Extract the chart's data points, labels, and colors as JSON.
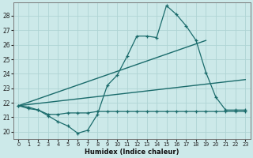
{
  "xlabel": "Humidex (Indice chaleur)",
  "xlim": [
    -0.5,
    23.5
  ],
  "ylim": [
    19.5,
    28.9
  ],
  "yticks": [
    20,
    21,
    22,
    23,
    24,
    25,
    26,
    27,
    28
  ],
  "xticks": [
    0,
    1,
    2,
    3,
    4,
    5,
    6,
    7,
    8,
    9,
    10,
    11,
    12,
    13,
    14,
    15,
    16,
    17,
    18,
    19,
    20,
    21,
    22,
    23
  ],
  "bg_color": "#cce9e9",
  "line_color": "#1a6b6b",
  "grid_color": "#afd4d4",
  "line1_x": [
    0,
    1,
    2,
    3,
    4,
    5,
    6,
    7,
    8,
    9,
    10,
    11,
    12,
    13,
    14,
    15,
    16,
    17,
    18,
    19,
    20,
    21,
    22,
    23
  ],
  "line1_y": [
    21.8,
    21.7,
    21.5,
    21.1,
    20.7,
    20.4,
    19.9,
    20.1,
    21.2,
    23.2,
    23.9,
    25.2,
    26.6,
    26.6,
    26.5,
    28.7,
    28.1,
    27.3,
    26.3,
    24.1,
    22.4,
    21.5,
    21.5,
    21.5
  ],
  "line2_x": [
    0,
    1,
    2,
    3,
    4,
    5,
    6,
    7,
    8,
    9,
    10,
    11,
    12,
    13,
    14,
    15,
    16,
    17,
    18,
    19,
    20,
    21,
    22,
    23
  ],
  "line2_y": [
    21.8,
    21.6,
    21.5,
    21.2,
    21.2,
    21.3,
    21.3,
    21.3,
    21.4,
    21.4,
    21.4,
    21.4,
    21.4,
    21.4,
    21.4,
    21.4,
    21.4,
    21.4,
    21.4,
    21.4,
    21.4,
    21.4,
    21.4,
    21.4
  ],
  "line3_x": [
    0,
    19
  ],
  "line3_y": [
    21.8,
    26.3
  ],
  "line4_x": [
    0,
    23
  ],
  "line4_y": [
    21.8,
    23.6
  ]
}
